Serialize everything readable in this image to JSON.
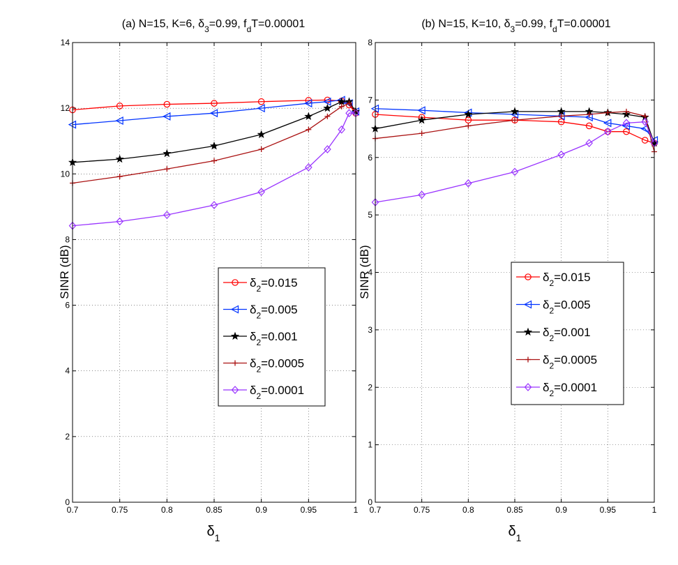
{
  "chart_data": [
    {
      "type": "line",
      "title": {
        "prefix": "(a) N=15, K=6, ",
        "d3sym": "δ",
        "d3sub": "3",
        "d3val": "=0.99, f",
        "fdsub": "d",
        "fdval": "T=0.00001"
      },
      "xlabel": {
        "sym": "δ",
        "sub": "1"
      },
      "ylabel": "SINR (dB)",
      "xlim": [
        0.7,
        1.0
      ],
      "ylim": [
        0,
        14
      ],
      "xticks": [
        0.7,
        0.75,
        0.8,
        0.85,
        0.9,
        0.95,
        1
      ],
      "xtick_labels": [
        "0.7",
        "0.75",
        "0.8",
        "0.85",
        "0.9",
        "0.95",
        "1"
      ],
      "yticks": [
        0,
        2,
        4,
        6,
        8,
        10,
        12,
        14
      ],
      "ytick_labels": [
        "0",
        "2",
        "4",
        "6",
        "8",
        "10",
        "12",
        "14"
      ],
      "grid": true,
      "legend_position": "center-right",
      "series": [
        {
          "name": "δ2=0.015",
          "legend_sym": "δ",
          "legend_sub": "2",
          "legend_val": "=0.015",
          "color": "#ff0000",
          "marker": "circle",
          "x": [
            0.7,
            0.75,
            0.8,
            0.85,
            0.9,
            0.95,
            0.97,
            0.985,
            0.993,
            1.0
          ],
          "y": [
            11.95,
            12.07,
            12.12,
            12.15,
            12.2,
            12.24,
            12.25,
            12.22,
            12.1,
            11.85
          ]
        },
        {
          "name": "δ2=0.005",
          "legend_sym": "δ",
          "legend_sub": "2",
          "legend_val": "=0.005",
          "color": "#0033ff",
          "marker": "triangle-left",
          "x": [
            0.7,
            0.75,
            0.8,
            0.85,
            0.9,
            0.95,
            0.97,
            0.985,
            0.993,
            1.0
          ],
          "y": [
            11.5,
            11.62,
            11.75,
            11.85,
            12.0,
            12.15,
            12.2,
            12.25,
            12.15,
            11.9
          ]
        },
        {
          "name": "δ2=0.001",
          "legend_sym": "δ",
          "legend_sub": "2",
          "legend_val": "=0.001",
          "color": "#000000",
          "marker": "star",
          "x": [
            0.7,
            0.75,
            0.8,
            0.85,
            0.9,
            0.95,
            0.97,
            0.985,
            0.993,
            1.0
          ],
          "y": [
            10.35,
            10.45,
            10.62,
            10.85,
            11.2,
            11.75,
            12.0,
            12.2,
            12.2,
            11.9
          ]
        },
        {
          "name": "δ2=0.0005",
          "legend_sym": "δ",
          "legend_sub": "2",
          "legend_val": "=0.0005",
          "color": "#aa1111",
          "marker": "plus",
          "x": [
            0.7,
            0.75,
            0.8,
            0.85,
            0.9,
            0.95,
            0.97,
            0.985,
            0.993,
            1.0
          ],
          "y": [
            9.72,
            9.92,
            10.15,
            10.4,
            10.75,
            11.35,
            11.75,
            12.05,
            12.15,
            11.9
          ]
        },
        {
          "name": "δ2=0.0001",
          "legend_sym": "δ",
          "legend_sub": "2",
          "legend_val": "=0.0001",
          "color": "#9933ff",
          "marker": "diamond",
          "x": [
            0.7,
            0.75,
            0.8,
            0.85,
            0.9,
            0.95,
            0.97,
            0.985,
            0.993,
            1.0
          ],
          "y": [
            8.42,
            8.55,
            8.75,
            9.05,
            9.45,
            10.2,
            10.75,
            11.35,
            11.85,
            11.85
          ]
        }
      ]
    },
    {
      "type": "line",
      "title": {
        "prefix": "(b) N=15, K=10, ",
        "d3sym": "δ",
        "d3sub": "3",
        "d3val": "=0.99, f",
        "fdsub": "d",
        "fdval": "T=0.00001"
      },
      "xlabel": {
        "sym": "δ",
        "sub": "1"
      },
      "ylabel": "SINR (dB)",
      "xlim": [
        0.7,
        1.0
      ],
      "ylim": [
        0,
        8
      ],
      "xticks": [
        0.7,
        0.75,
        0.8,
        0.85,
        0.9,
        0.95,
        1
      ],
      "xtick_labels": [
        "0.7",
        "0.75",
        "0.8",
        "0.85",
        "0.9",
        "0.95",
        "1"
      ],
      "yticks": [
        0,
        1,
        2,
        3,
        4,
        5,
        6,
        7,
        8
      ],
      "ytick_labels": [
        "0",
        "1",
        "2",
        "3",
        "4",
        "5",
        "6",
        "7",
        "8"
      ],
      "grid": true,
      "legend_position": "center-right",
      "series": [
        {
          "name": "δ2=0.015",
          "legend_sym": "δ",
          "legend_sub": "2",
          "legend_val": "=0.015",
          "color": "#ff0000",
          "marker": "circle",
          "x": [
            0.7,
            0.75,
            0.8,
            0.85,
            0.9,
            0.93,
            0.95,
            0.97,
            0.99,
            1.0
          ],
          "y": [
            6.75,
            6.7,
            6.65,
            6.65,
            6.62,
            6.55,
            6.45,
            6.45,
            6.3,
            6.25
          ]
        },
        {
          "name": "δ2=0.005",
          "legend_sym": "δ",
          "legend_sub": "2",
          "legend_val": "=0.005",
          "color": "#0033ff",
          "marker": "triangle-left",
          "x": [
            0.7,
            0.75,
            0.8,
            0.85,
            0.9,
            0.93,
            0.95,
            0.97,
            0.99,
            1.0
          ],
          "y": [
            6.85,
            6.82,
            6.78,
            6.75,
            6.72,
            6.7,
            6.6,
            6.55,
            6.5,
            6.3
          ]
        },
        {
          "name": "δ2=0.001",
          "legend_sym": "δ",
          "legend_sub": "2",
          "legend_val": "=0.001",
          "color": "#000000",
          "marker": "star",
          "x": [
            0.7,
            0.75,
            0.8,
            0.85,
            0.9,
            0.93,
            0.95,
            0.97,
            0.99,
            1.0
          ],
          "y": [
            6.5,
            6.65,
            6.75,
            6.8,
            6.8,
            6.8,
            6.78,
            6.75,
            6.7,
            6.25
          ]
        },
        {
          "name": "δ2=0.0005",
          "legend_sym": "δ",
          "legend_sub": "2",
          "legend_val": "=0.0005",
          "color": "#aa1111",
          "marker": "plus",
          "x": [
            0.7,
            0.75,
            0.8,
            0.85,
            0.9,
            0.93,
            0.95,
            0.97,
            0.99,
            1.0
          ],
          "y": [
            6.33,
            6.42,
            6.55,
            6.65,
            6.72,
            6.75,
            6.78,
            6.8,
            6.72,
            6.1
          ]
        },
        {
          "name": "δ2=0.0001",
          "legend_sym": "δ",
          "legend_sub": "2",
          "legend_val": "=0.0001",
          "color": "#9933ff",
          "marker": "diamond",
          "x": [
            0.7,
            0.75,
            0.8,
            0.85,
            0.9,
            0.93,
            0.95,
            0.97,
            0.99,
            1.0
          ],
          "y": [
            5.22,
            5.35,
            5.55,
            5.75,
            6.05,
            6.25,
            6.45,
            6.6,
            6.62,
            6.25
          ]
        }
      ]
    }
  ]
}
